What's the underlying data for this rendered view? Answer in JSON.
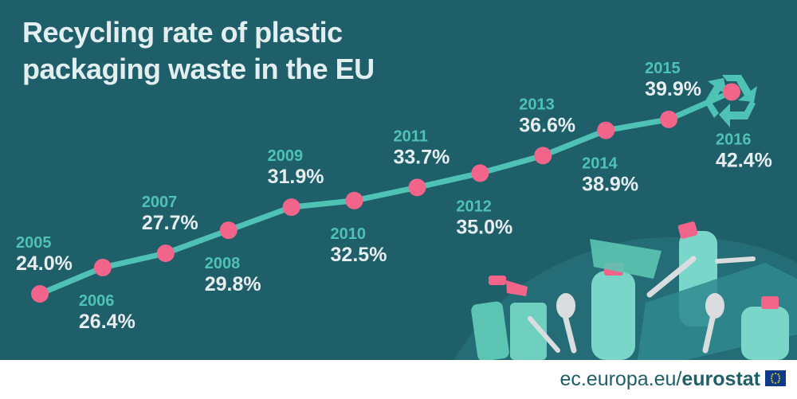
{
  "title": {
    "line1": "Recycling rate of plastic",
    "line2": "packaging waste in the EU"
  },
  "chart_data": {
    "type": "line",
    "title": "Recycling rate of plastic packaging waste in the EU",
    "x": [
      "2005",
      "2006",
      "2007",
      "2008",
      "2009",
      "2010",
      "2011",
      "2012",
      "2013",
      "2014",
      "2015",
      "2016"
    ],
    "values": [
      24.0,
      26.4,
      27.7,
      29.8,
      31.9,
      32.5,
      33.7,
      35.0,
      36.6,
      38.9,
      39.9,
      42.4
    ],
    "labels": [
      "24.0%",
      "26.4%",
      "27.7%",
      "29.8%",
      "31.9%",
      "32.5%",
      "33.7%",
      "35.0%",
      "36.6%",
      "38.9%",
      "39.9%",
      "42.4%"
    ],
    "ylim": [
      20,
      45
    ],
    "grid": false
  },
  "footer": {
    "site": "ec.europa.eu/",
    "brand": "eurostat"
  },
  "colors": {
    "background": "#1f5f6a",
    "line": "#4fc2b6",
    "marker": "#f2648a",
    "year_text": "#4fc2b6",
    "value_text": "#e6eef0",
    "footer_text": "#1f5f6a"
  },
  "icons": [
    "recycle-icon",
    "plastic-waste-illustration",
    "eu-flag-icon"
  ]
}
